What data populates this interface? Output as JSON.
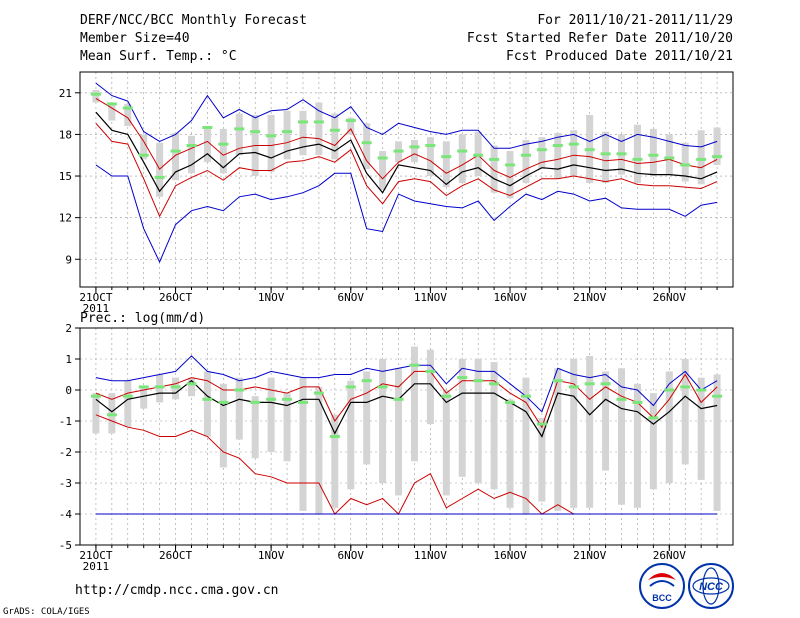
{
  "header": {
    "left": [
      "DERF/NCC/BCC Monthly Forecast",
      "Member Size=40",
      "Mean Surf. Temp.: °C"
    ],
    "right": [
      "For 2011/10/21-2011/11/29",
      "Fcst Started Refer Date 2011/10/20",
      "Fcst Produced Date 2011/10/21"
    ]
  },
  "footer": {
    "url": "http://cmdp.ncc.cma.gov.cn",
    "credit": "GrADS: COLA/IGES"
  },
  "logos": [
    {
      "name": "bcc-logo",
      "text": "BCC"
    },
    {
      "name": "ncc-logo",
      "text": "NCC"
    }
  ],
  "colors": {
    "box": "#d4d4d4",
    "median": "#7ae67a",
    "mean": "#000000",
    "spread": "#cc0000",
    "extreme": "#0000cc",
    "grid": "#999999"
  },
  "chart_data": [
    {
      "type": "line",
      "title": "Mean Surf. Temp.: °C",
      "xlabel": "",
      "ylabel": "°C",
      "x_tick_labels": [
        "21OCT",
        "26OCT",
        "1NOV",
        "6NOV",
        "11NOV",
        "16NOV",
        "21NOV",
        "26NOV"
      ],
      "x_tick_days": [
        0,
        5,
        11,
        16,
        21,
        26,
        31,
        36
      ],
      "x_sub_label": "2011",
      "x_range": [
        -1,
        40
      ],
      "ylim": [
        7,
        22.5
      ],
      "yticks": [
        9,
        12,
        15,
        18,
        21
      ],
      "grid": true,
      "days": [
        0,
        1,
        2,
        3,
        4,
        5,
        6,
        7,
        8,
        9,
        10,
        11,
        12,
        13,
        14,
        15,
        16,
        17,
        18,
        19,
        20,
        21,
        22,
        23,
        24,
        25,
        26,
        27,
        28,
        29,
        30,
        31,
        32,
        33,
        34,
        35,
        36,
        37,
        38,
        39
      ],
      "series": [
        {
          "name": "max",
          "color": "#0000cc",
          "values": [
            21.7,
            20.8,
            20.4,
            18.2,
            17.5,
            18.0,
            19.0,
            20.8,
            19.2,
            19.8,
            19.2,
            19.7,
            19.8,
            20.5,
            19.7,
            19.2,
            20.0,
            18.5,
            18.0,
            18.8,
            18.5,
            18.2,
            18.0,
            18.3,
            18.3,
            17.0,
            17.0,
            17.3,
            17.5,
            17.8,
            18.0,
            17.5,
            18.0,
            17.5,
            18.0,
            17.8,
            17.5,
            17.2,
            17.1,
            17.5
          ]
        },
        {
          "name": "upper",
          "color": "#cc0000",
          "values": [
            20.6,
            19.9,
            19.2,
            17.5,
            15.5,
            16.5,
            17.0,
            17.5,
            16.5,
            17.0,
            17.2,
            17.2,
            17.4,
            17.8,
            17.7,
            17.2,
            18.4,
            16.1,
            14.8,
            16.0,
            16.6,
            16.1,
            15.2,
            15.8,
            16.5,
            15.4,
            14.9,
            15.5,
            16.0,
            16.2,
            16.5,
            16.4,
            16.1,
            16.2,
            15.9,
            16.0,
            16.2,
            15.8,
            15.6,
            16.2
          ]
        },
        {
          "name": "mean",
          "color": "#000000",
          "values": [
            19.6,
            18.3,
            18.0,
            16.0,
            13.9,
            15.3,
            15.8,
            16.6,
            15.6,
            16.6,
            16.7,
            16.3,
            16.8,
            17.1,
            17.3,
            16.8,
            17.6,
            15.2,
            13.8,
            15.8,
            15.6,
            15.4,
            14.4,
            15.3,
            15.6,
            14.8,
            14.3,
            15.0,
            15.6,
            15.5,
            15.8,
            15.6,
            15.4,
            15.5,
            15.2,
            15.1,
            15.1,
            15.0,
            14.8,
            15.3
          ]
        },
        {
          "name": "lower",
          "color": "#cc0000",
          "values": [
            18.8,
            17.5,
            17.3,
            14.8,
            12.1,
            14.3,
            14.9,
            15.4,
            14.7,
            15.6,
            15.4,
            15.4,
            16.0,
            16.1,
            16.4,
            16.0,
            16.9,
            14.3,
            13.0,
            14.6,
            14.8,
            14.6,
            13.6,
            14.3,
            14.8,
            14.0,
            13.6,
            14.2,
            14.8,
            14.8,
            15.0,
            14.8,
            14.6,
            14.8,
            14.4,
            14.3,
            14.3,
            14.2,
            14.1,
            14.6
          ]
        },
        {
          "name": "min",
          "color": "#0000cc",
          "values": [
            15.8,
            15.0,
            15.0,
            11.2,
            8.8,
            11.5,
            12.5,
            12.8,
            12.5,
            13.5,
            13.7,
            13.3,
            13.5,
            13.8,
            14.3,
            15.2,
            15.2,
            11.2,
            11.0,
            13.7,
            13.2,
            13.0,
            12.8,
            12.7,
            13.2,
            11.8,
            12.8,
            13.7,
            13.3,
            13.9,
            13.7,
            13.2,
            13.4,
            12.7,
            12.6,
            12.6,
            12.6,
            12.1,
            12.9,
            13.1
          ]
        }
      ],
      "boxes": {
        "low": [
          20.3,
          19.0,
          18.6,
          16.2,
          13.5,
          14.7,
          15.2,
          16.0,
          15.2,
          16.5,
          15.0,
          15.3,
          16.2,
          16.5,
          16.5,
          16.2,
          18.0,
          15.5,
          14.0,
          16.0,
          16.0,
          15.0,
          14.2,
          14.5,
          15.0,
          13.8,
          13.4,
          14.5,
          15.5,
          14.8,
          15.0,
          14.5,
          14.5,
          15.1,
          14.5,
          15.0,
          15.1,
          14.6,
          14.4,
          15.8
        ],
        "high": [
          21.2,
          20.3,
          20.2,
          18.0,
          17.4,
          18.1,
          17.9,
          18.5,
          18.4,
          19.5,
          19.4,
          19.4,
          19.7,
          19.7,
          20.3,
          19.5,
          19.2,
          18.8,
          16.8,
          17.5,
          17.6,
          17.8,
          17.5,
          18.0,
          18.2,
          17.2,
          16.8,
          17.6,
          17.8,
          18.1,
          18.3,
          19.4,
          18.2,
          18.0,
          18.7,
          18.4,
          18.0,
          17.4,
          18.3,
          18.5
        ],
        "median": [
          20.9,
          20.2,
          19.9,
          16.5,
          14.9,
          16.8,
          17.2,
          18.5,
          17.3,
          18.4,
          18.2,
          17.9,
          18.2,
          18.9,
          18.9,
          18.3,
          19.0,
          17.4,
          16.3,
          16.8,
          17.1,
          17.2,
          16.4,
          16.8,
          16.5,
          16.2,
          15.8,
          16.5,
          16.9,
          17.2,
          17.3,
          16.9,
          16.6,
          16.6,
          16.2,
          16.5,
          16.3,
          15.8,
          16.2,
          16.4
        ]
      }
    },
    {
      "type": "line",
      "title": "Prec.: log(mm/d)",
      "xlabel": "",
      "ylabel": "log(mm/d)",
      "x_tick_labels": [
        "21OCT",
        "26OCT",
        "1NOV",
        "6NOV",
        "11NOV",
        "16NOV",
        "21NOV",
        "26NOV"
      ],
      "x_tick_days": [
        0,
        5,
        11,
        16,
        21,
        26,
        31,
        36
      ],
      "x_sub_label": "2011",
      "x_range": [
        -1,
        40
      ],
      "ylim": [
        -5,
        2
      ],
      "yticks": [
        -5,
        -4,
        -3,
        -2,
        -1,
        0,
        1,
        2
      ],
      "grid": true,
      "days": [
        0,
        1,
        2,
        3,
        4,
        5,
        6,
        7,
        8,
        9,
        10,
        11,
        12,
        13,
        14,
        15,
        16,
        17,
        18,
        19,
        20,
        21,
        22,
        23,
        24,
        25,
        26,
        27,
        28,
        29,
        30,
        31,
        32,
        33,
        34,
        35,
        36,
        37,
        38,
        39
      ],
      "series": [
        {
          "name": "max",
          "color": "#0000cc",
          "values": [
            0.4,
            0.3,
            0.3,
            0.4,
            0.5,
            0.6,
            1.1,
            0.6,
            0.5,
            0.3,
            0.4,
            0.6,
            0.5,
            0.4,
            0.4,
            0.5,
            0.5,
            0.7,
            0.6,
            0.7,
            0.8,
            0.8,
            0.2,
            0.7,
            0.6,
            0.6,
            0.2,
            -0.2,
            -0.7,
            0.7,
            0.5,
            0.4,
            0.5,
            0.1,
            0.0,
            -0.5,
            0.2,
            0.6,
            0.0,
            0.3
          ]
        },
        {
          "name": "upper",
          "color": "#cc0000",
          "values": [
            -0.1,
            -0.3,
            -0.1,
            0.0,
            0.1,
            0.2,
            0.4,
            0.3,
            0.0,
            0.0,
            0.1,
            0.0,
            -0.1,
            0.1,
            0.1,
            -1.0,
            -0.3,
            -0.1,
            0.2,
            0.1,
            0.6,
            0.6,
            -0.1,
            0.3,
            0.3,
            0.3,
            -0.1,
            -0.4,
            -1.2,
            0.3,
            0.2,
            -0.3,
            0.1,
            -0.2,
            -0.4,
            -0.9,
            -0.3,
            0.5,
            -0.4,
            0.1
          ]
        },
        {
          "name": "mean",
          "color": "#000000",
          "values": [
            -0.3,
            -0.7,
            -0.3,
            -0.2,
            -0.1,
            -0.1,
            0.3,
            -0.2,
            -0.5,
            -0.3,
            -0.4,
            -0.4,
            -0.5,
            -0.3,
            -0.3,
            -1.4,
            -0.4,
            -0.4,
            -0.2,
            -0.3,
            0.2,
            0.2,
            -0.4,
            -0.1,
            -0.1,
            -0.1,
            -0.4,
            -0.7,
            -1.5,
            -0.1,
            -0.2,
            -0.8,
            -0.3,
            -0.6,
            -0.7,
            -1.1,
            -0.7,
            -0.2,
            -0.6,
            -0.5
          ]
        },
        {
          "name": "lower",
          "color": "#cc0000",
          "values": [
            -0.8,
            -1.0,
            -1.2,
            -1.3,
            -1.5,
            -1.5,
            -1.3,
            -1.5,
            -2.0,
            -2.2,
            -2.7,
            -2.8,
            -3.0,
            -3.0,
            -3.0,
            -4.0,
            -3.5,
            -3.7,
            -3.5,
            -4.0,
            -3.0,
            -2.7,
            -3.8,
            -3.5,
            -3.2,
            -3.5,
            -3.3,
            -3.5,
            -4.0,
            -3.7,
            -4.0,
            -4.0,
            -4.0,
            -4.0,
            -4.0,
            -4.0,
            -4.0,
            -4.0,
            -4.0,
            -4.0
          ]
        },
        {
          "name": "min",
          "color": "#0000cc",
          "values": [
            -4,
            -4,
            -4,
            -4,
            -4,
            -4,
            -4,
            -4,
            -4,
            -4,
            -4,
            -4,
            -4,
            -4,
            -4,
            -4,
            -4,
            -4,
            -4,
            -4,
            -4,
            -4,
            -4,
            -4,
            -4,
            -4,
            -4,
            -4,
            -4,
            -4,
            -4,
            -4,
            -4,
            -4,
            -4,
            -4,
            -4,
            -4,
            -4,
            -4
          ]
        }
      ],
      "boxes": {
        "low": [
          -1.4,
          -1.4,
          -1.2,
          -0.6,
          -0.4,
          -0.3,
          -0.2,
          -1.5,
          -2.5,
          -1.6,
          -2.2,
          -2.0,
          -2.3,
          -3.9,
          -4.0,
          -3.8,
          -3.2,
          -2.4,
          -3.0,
          -3.4,
          -2.3,
          -1.1,
          -3.4,
          -2.8,
          -3.0,
          -3.2,
          -3.8,
          -4.0,
          -3.6,
          -3.9,
          -3.8,
          -3.8,
          -2.6,
          -3.7,
          -3.8,
          -3.2,
          -3.0,
          -2.4,
          -2.9,
          -3.9
        ],
        "high": [
          -0.1,
          -0.1,
          0.3,
          0.1,
          0.5,
          0.4,
          0.4,
          0.6,
          0.2,
          0.4,
          -0.2,
          0.4,
          -0.1,
          0.4,
          0.1,
          -0.8,
          0.3,
          0.6,
          1.0,
          0.7,
          1.4,
          1.3,
          0.0,
          1.0,
          1.0,
          0.9,
          -0.3,
          0.4,
          -0.9,
          0.7,
          1.0,
          1.1,
          0.6,
          0.7,
          0.2,
          -0.1,
          0.6,
          1.0,
          0.4,
          0.5
        ],
        "median": [
          -0.2,
          -0.8,
          -0.2,
          0.1,
          0.1,
          0.1,
          0.2,
          -0.3,
          -0.4,
          0.0,
          -0.4,
          -0.3,
          -0.3,
          -0.4,
          -0.1,
          -1.5,
          0.1,
          0.3,
          0.1,
          -0.3,
          0.8,
          0.6,
          -0.2,
          0.4,
          0.3,
          0.2,
          -0.4,
          -0.2,
          -1.1,
          0.3,
          0.1,
          0.2,
          0.2,
          -0.3,
          -0.4,
          -0.9,
          0.0,
          0.1,
          0.0,
          -0.2
        ]
      }
    }
  ]
}
